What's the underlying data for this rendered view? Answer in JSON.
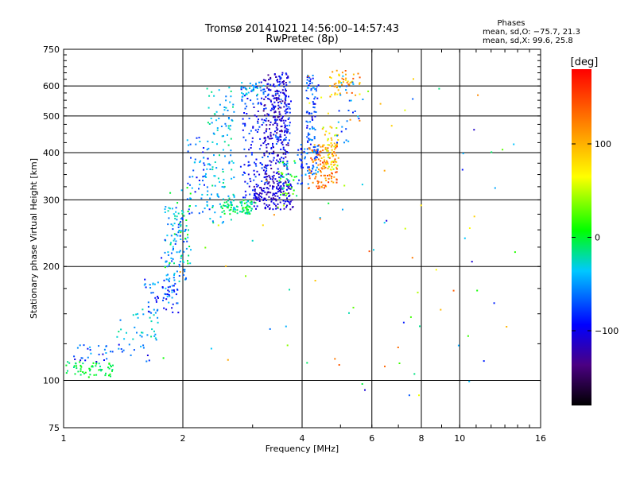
{
  "chart_data": {
    "type": "scatter",
    "title": "Tromsø 20141021 14:56:00–14:57:43",
    "subtitle": "RwPretec (8p)",
    "xlabel": "Frequency [MHz]",
    "ylabel": "Stationary phase Virtual Height [km]",
    "x_scale": "log",
    "y_scale": "log",
    "xlim": [
      1,
      16
    ],
    "ylim": [
      75,
      750
    ],
    "x_ticks": [
      1,
      2,
      4,
      6,
      8,
      10,
      16
    ],
    "x_tick_labels": [
      "1",
      "2",
      "4",
      "6",
      "8",
      "10",
      "16"
    ],
    "y_ticks": [
      75,
      100,
      200,
      300,
      400,
      500,
      600,
      750
    ],
    "y_tick_labels": [
      "75",
      "100",
      "200",
      "300",
      "400",
      "500",
      "600",
      "750"
    ],
    "grid": true,
    "stats": {
      "title": "Phases",
      "line_o": "mean, sd,O: −75.7, 21.3",
      "line_x": "mean, sd,X:  99.6, 25.8"
    },
    "colorbar": {
      "label": "[deg]",
      "range": [
        -180,
        180
      ],
      "ticks": [
        100,
        0,
        -100
      ],
      "tick_labels": [
        "100",
        "0",
        "−100"
      ],
      "colormap": [
        "#000000",
        "#4b0082",
        "#0000ff",
        "#00c8ff",
        "#00ff00",
        "#ffff00",
        "#ff8000",
        "#ff0000"
      ]
    },
    "traces": [
      {
        "name": "",
        "xr": [
          1.0,
          1.35
        ],
        "yr": [
          102,
          112
        ],
        "n": 60,
        "c": [
          -20,
          10
        ]
      },
      {
        "name": "",
        "xr": [
          1.05,
          1.65
        ],
        "yr": [
          112,
          125
        ],
        "n": 40,
        "c": [
          -110,
          -40
        ]
      },
      {
        "name": "",
        "xr": [
          1.35,
          1.75
        ],
        "yr": [
          128,
          155
        ],
        "n": 35,
        "c": [
          -60,
          -10
        ]
      },
      {
        "name": "",
        "xr": [
          1.6,
          1.95
        ],
        "yr": [
          150,
          185
        ],
        "n": 60,
        "c": [
          -110,
          -30
        ]
      },
      {
        "name": "",
        "xr": [
          1.8,
          2.05
        ],
        "yr": [
          180,
          290
        ],
        "n": 90,
        "c": [
          -80,
          -20
        ]
      },
      {
        "name": "",
        "xr": [
          1.85,
          2.1
        ],
        "yr": [
          200,
          330
        ],
        "n": 40,
        "c": [
          -40,
          20
        ]
      },
      {
        "name": "",
        "xr": [
          2.05,
          2.35
        ],
        "yr": [
          270,
          440
        ],
        "n": 60,
        "c": [
          -100,
          -30
        ]
      },
      {
        "name": "",
        "xr": [
          2.3,
          2.7
        ],
        "yr": [
          260,
          600
        ],
        "n": 120,
        "c": [
          -60,
          -10
        ]
      },
      {
        "name": "",
        "xr": [
          2.5,
          3.0
        ],
        "yr": [
          275,
          300
        ],
        "n": 80,
        "c": [
          -40,
          10
        ]
      },
      {
        "name": "",
        "xr": [
          2.8,
          3.3
        ],
        "yr": [
          300,
          620
        ],
        "n": 140,
        "c": [
          -110,
          -60
        ]
      },
      {
        "name": "",
        "xr": [
          2.8,
          3.2
        ],
        "yr": [
          560,
          620
        ],
        "n": 30,
        "c": [
          -60,
          -20
        ]
      },
      {
        "name": "",
        "xr": [
          3.0,
          3.8
        ],
        "yr": [
          283,
          330
        ],
        "n": 140,
        "c": [
          -130,
          -90
        ]
      },
      {
        "name": "",
        "xr": [
          3.2,
          3.7
        ],
        "yr": [
          330,
          650
        ],
        "n": 260,
        "c": [
          -140,
          -80
        ]
      },
      {
        "name": "",
        "xr": [
          3.4,
          3.75
        ],
        "yr": [
          420,
          640
        ],
        "n": 80,
        "c": [
          -120,
          -60
        ]
      },
      {
        "name": "",
        "xr": [
          3.5,
          3.9
        ],
        "yr": [
          300,
          380
        ],
        "n": 40,
        "c": [
          -40,
          40
        ]
      },
      {
        "name": "",
        "xr": [
          3.9,
          4.15
        ],
        "yr": [
          330,
          420
        ],
        "n": 30,
        "c": [
          -100,
          -40
        ]
      },
      {
        "name": "",
        "xr": [
          4.1,
          4.4
        ],
        "yr": [
          350,
          640
        ],
        "n": 120,
        "c": [
          -110,
          -40
        ]
      },
      {
        "name": "",
        "xr": [
          4.15,
          4.9
        ],
        "yr": [
          320,
          420
        ],
        "n": 110,
        "c": [
          90,
          160
        ]
      },
      {
        "name": "",
        "xr": [
          4.5,
          4.95
        ],
        "yr": [
          360,
          470
        ],
        "n": 60,
        "c": [
          40,
          110
        ]
      },
      {
        "name": "",
        "xr": [
          4.7,
          5.6
        ],
        "yr": [
          560,
          660
        ],
        "n": 50,
        "c": [
          60,
          150
        ]
      },
      {
        "name": "",
        "xr": [
          4.9,
          5.6
        ],
        "yr": [
          420,
          640
        ],
        "n": 25,
        "c": [
          -90,
          -30
        ]
      },
      {
        "name": "",
        "xr": [
          4.0,
          14.0
        ],
        "yr": [
          85,
          660
        ],
        "n": 70,
        "c": [
          -120,
          150
        ]
      },
      {
        "name": "",
        "xr": [
          1.7,
          3.8
        ],
        "yr": [
          90,
          360
        ],
        "n": 25,
        "c": [
          -120,
          120
        ]
      }
    ]
  }
}
